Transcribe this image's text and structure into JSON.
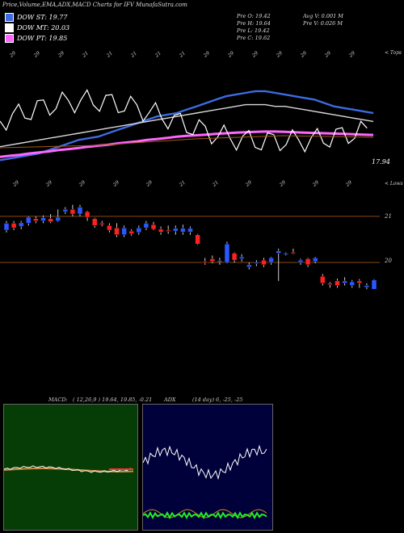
{
  "title": "Price,Volume,EMA,ADX,MACD Charts for IFV MunafaSutra.com",
  "legend": [
    {
      "label": "DOW ST: 19.77",
      "color": "#3d6be0"
    },
    {
      "label": "DOW MT: 20.03",
      "color": "#ffffff"
    },
    {
      "label": "DOW PT: 19.85",
      "color": "#ff66ff"
    }
  ],
  "ohlc": {
    "open": "Pre  O: 19.42",
    "high": "Pre  H: 19.64",
    "low": "Pre  L: 19.42",
    "close": "Pre  C: 19.62",
    "avg_vol": "Avg V: 0.001 M",
    "pre_vol": "Pre  V: 0.026  M"
  },
  "upper_label": "< Tops",
  "lower_label": "< Lows",
  "last_price_label": "17.94",
  "price_levels": [
    "21",
    "20"
  ],
  "top_tick_labels": [
    "29",
    "29",
    "29",
    "21",
    "21",
    "21",
    "21",
    "21",
    "29",
    "29",
    "29",
    "29",
    "29",
    "29",
    "29"
  ],
  "bottom_tick_labels": [
    "29",
    "29",
    "29",
    "29",
    "29",
    "21",
    "21",
    "29",
    "29",
    "29",
    "29"
  ],
  "macd_panel": {
    "label": "MACD:",
    "values": "( 12,26,9 ) 19.64,  19.85,  -0.21"
  },
  "adx_panel": {
    "label": "ADX",
    "values": "(14  day) 6,  -25,  -25"
  },
  "colors": {
    "up_candle": "#2a57ff",
    "down_candle": "#ff2020",
    "grid": "#8a4a10",
    "macd_bg": "#063d06",
    "adx_bg": "#00003a"
  },
  "chart_data": [
    {
      "type": "line",
      "title": "Price,Volume,EMA,ADX,MACD Charts for IFV MunafaSutra.com",
      "series": [
        {
          "name": "DOW ST",
          "values": [
            19.9,
            19.95,
            20.0,
            20.05,
            20.1,
            20.2,
            20.3,
            20.4,
            20.5,
            20.55,
            20.6,
            20.7,
            20.8,
            20.9,
            21.0,
            21.1,
            21.2,
            21.25,
            21.3,
            21.4,
            21.5,
            21.6,
            21.7,
            21.8,
            21.85,
            21.9,
            21.95,
            21.95,
            21.9,
            21.85,
            21.8,
            21.75,
            21.7,
            21.6,
            21.5,
            21.45,
            21.4,
            21.35,
            21.3
          ]
        },
        {
          "name": "DOW MT",
          "values": [
            20.3,
            20.35,
            20.4,
            20.45,
            20.5,
            20.55,
            20.6,
            20.65,
            20.7,
            20.75,
            20.8,
            20.85,
            20.9,
            20.95,
            21.0,
            21.05,
            21.1,
            21.15,
            21.2,
            21.25,
            21.3,
            21.35,
            21.4,
            21.45,
            21.5,
            21.55,
            21.55,
            21.55,
            21.5,
            21.5,
            21.45,
            21.4,
            21.35,
            21.3,
            21.25,
            21.2,
            21.15,
            21.1,
            21.05
          ]
        },
        {
          "name": "DOW PT",
          "values": [
            20.0,
            20.03,
            20.06,
            20.1,
            20.13,
            20.16,
            20.2,
            20.23,
            20.26,
            20.3,
            20.33,
            20.36,
            20.4,
            20.43,
            20.46,
            20.5,
            20.53,
            20.56,
            20.6,
            20.62,
            20.64,
            20.66,
            20.68,
            20.7,
            20.72,
            20.73,
            20.74,
            20.75,
            20.75,
            20.74,
            20.73,
            20.72,
            20.71,
            20.7,
            20.69,
            20.68,
            20.67,
            20.66,
            20.65
          ]
        }
      ]
    },
    {
      "type": "bar",
      "title": "",
      "candles": [
        {
          "o": 20.7,
          "c": 20.85,
          "h": 20.9,
          "l": 20.65
        },
        {
          "o": 20.85,
          "c": 20.75,
          "h": 20.9,
          "l": 20.7
        },
        {
          "o": 20.78,
          "c": 20.86,
          "h": 20.9,
          "l": 20.72
        },
        {
          "o": 20.85,
          "c": 20.98,
          "h": 21.0,
          "l": 20.8
        },
        {
          "o": 20.95,
          "c": 20.9,
          "h": 21.0,
          "l": 20.85
        },
        {
          "o": 20.9,
          "c": 20.97,
          "h": 21.02,
          "l": 20.85
        },
        {
          "o": 20.95,
          "c": 20.88,
          "h": 21.05,
          "l": 20.85
        },
        {
          "o": 20.9,
          "c": 20.98,
          "h": 21.15,
          "l": 20.88
        },
        {
          "o": 21.1,
          "c": 21.15,
          "h": 21.2,
          "l": 21.05
        },
        {
          "o": 21.15,
          "c": 21.05,
          "h": 21.25,
          "l": 21.0
        },
        {
          "o": 21.05,
          "c": 21.2,
          "h": 21.25,
          "l": 21.0
        },
        {
          "o": 21.1,
          "c": 20.98,
          "h": 21.12,
          "l": 20.9
        },
        {
          "o": 20.95,
          "c": 20.8,
          "h": 20.97,
          "l": 20.75
        },
        {
          "o": 20.85,
          "c": 20.82,
          "h": 20.9,
          "l": 20.78
        },
        {
          "o": 20.8,
          "c": 20.7,
          "h": 20.85,
          "l": 20.65
        },
        {
          "o": 20.75,
          "c": 20.6,
          "h": 20.85,
          "l": 20.55
        },
        {
          "o": 20.6,
          "c": 20.75,
          "h": 20.8,
          "l": 20.55
        },
        {
          "o": 20.68,
          "c": 20.62,
          "h": 20.72,
          "l": 20.58
        },
        {
          "o": 20.65,
          "c": 20.75,
          "h": 20.8,
          "l": 20.6
        },
        {
          "o": 20.75,
          "c": 20.85,
          "h": 20.9,
          "l": 20.7
        },
        {
          "o": 20.82,
          "c": 20.72,
          "h": 20.88,
          "l": 20.7
        },
        {
          "o": 20.72,
          "c": 20.66,
          "h": 20.78,
          "l": 20.6
        },
        {
          "o": 20.7,
          "c": 20.68,
          "h": 20.8,
          "l": 20.62
        },
        {
          "o": 20.68,
          "c": 20.74,
          "h": 20.8,
          "l": 20.6
        },
        {
          "o": 20.66,
          "c": 20.74,
          "h": 20.82,
          "l": 20.6
        },
        {
          "o": 20.66,
          "c": 20.74,
          "h": 20.78,
          "l": 20.6
        },
        {
          "o": 20.6,
          "c": 20.4,
          "h": 20.62,
          "l": 20.38
        },
        {
          "o": 20.02,
          "c": 20.0,
          "h": 20.1,
          "l": 19.95
        },
        {
          "o": 20.08,
          "c": 20.02,
          "h": 20.15,
          "l": 19.98
        },
        {
          "o": 20.02,
          "c": 20.04,
          "h": 20.1,
          "l": 19.95
        },
        {
          "o": 20.0,
          "c": 20.4,
          "h": 20.45,
          "l": 19.98
        },
        {
          "o": 20.2,
          "c": 20.05,
          "h": 20.22,
          "l": 20.0
        },
        {
          "o": 20.08,
          "c": 20.12,
          "h": 20.18,
          "l": 20.02
        },
        {
          "o": 19.9,
          "c": 19.95,
          "h": 20.0,
          "l": 19.85
        },
        {
          "o": 19.98,
          "c": 20.0,
          "h": 20.05,
          "l": 19.92
        },
        {
          "o": 20.05,
          "c": 19.95,
          "h": 20.1,
          "l": 19.9
        },
        {
          "o": 20.0,
          "c": 20.1,
          "h": 20.12,
          "l": 19.95
        },
        {
          "o": 20.2,
          "c": 20.25,
          "h": 20.3,
          "l": 19.6
        },
        {
          "o": 20.2,
          "c": 20.2,
          "h": 20.22,
          "l": 20.15
        },
        {
          "o": 20.22,
          "c": 20.2,
          "h": 20.3,
          "l": 20.18
        },
        {
          "o": 20.0,
          "c": 20.05,
          "h": 20.08,
          "l": 19.95
        },
        {
          "o": 20.08,
          "c": 19.95,
          "h": 20.1,
          "l": 19.9
        },
        {
          "o": 20.02,
          "c": 20.1,
          "h": 20.12,
          "l": 19.98
        },
        {
          "o": 19.7,
          "c": 19.55,
          "h": 19.75,
          "l": 19.5
        },
        {
          "o": 19.55,
          "c": 19.52,
          "h": 19.58,
          "l": 19.45
        },
        {
          "o": 19.6,
          "c": 19.5,
          "h": 19.65,
          "l": 19.45
        },
        {
          "o": 19.55,
          "c": 19.6,
          "h": 19.68,
          "l": 19.5
        },
        {
          "o": 19.5,
          "c": 19.58,
          "h": 19.62,
          "l": 19.45
        },
        {
          "o": 19.6,
          "c": 19.55,
          "h": 19.64,
          "l": 19.45
        },
        {
          "o": 19.46,
          "c": 19.5,
          "h": 19.55,
          "l": 19.42
        },
        {
          "o": 19.42,
          "c": 19.62,
          "h": 19.64,
          "l": 19.42
        }
      ]
    }
  ]
}
